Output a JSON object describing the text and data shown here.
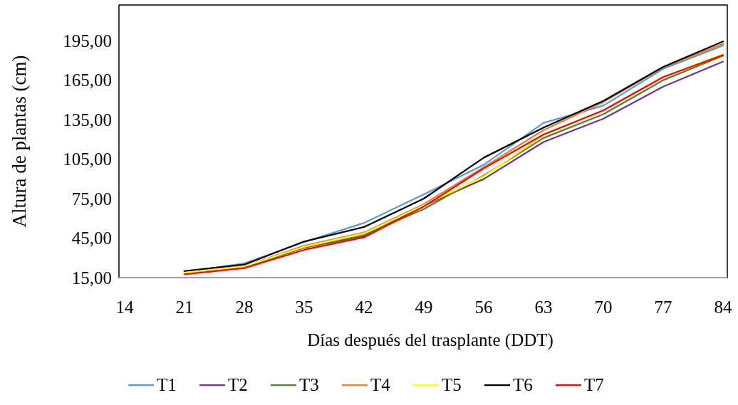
{
  "chart_data": {
    "type": "line",
    "xlabel": "Días después del trasplante (DDT)",
    "ylabel": "Altura de plantas (cm)",
    "categories": [
      "14",
      "21",
      "28",
      "35",
      "42",
      "49",
      "56",
      "63",
      "70",
      "77",
      "84"
    ],
    "ylim": [
      15,
      222
    ],
    "yticks": [
      {
        "value": 15,
        "label": "15,00"
      },
      {
        "value": 45,
        "label": "45,00"
      },
      {
        "value": 75,
        "label": "75,00"
      },
      {
        "value": 105,
        "label": "105,00"
      },
      {
        "value": 135,
        "label": "135,00"
      },
      {
        "value": 165,
        "label": "165,00"
      },
      {
        "value": 195,
        "label": "195,00"
      }
    ],
    "grid": false,
    "legend": "bottom",
    "marker": "none",
    "line_style": "solid",
    "series": [
      {
        "name": "T1",
        "color": "#5b9bd5",
        "values": [
          null,
          19.3,
          25.8,
          42,
          56.5,
          78.2,
          100.6,
          132.5,
          145.6,
          173.5,
          191.2
        ]
      },
      {
        "name": "T2",
        "color": "#7030a0",
        "values": [
          null,
          19.3,
          23,
          37.8,
          46.5,
          69.6,
          89.8,
          118,
          135.7,
          160,
          179
        ]
      },
      {
        "name": "T3",
        "color": "#548235",
        "values": [
          null,
          19.3,
          23,
          38,
          47.4,
          67,
          92.5,
          121,
          139,
          164.9,
          183.5
        ]
      },
      {
        "name": "T4",
        "color": "#ed7d31",
        "values": [
          null,
          19,
          23.5,
          39.3,
          49.2,
          70.8,
          98.8,
          127,
          148.3,
          174.5,
          192.5
        ]
      },
      {
        "name": "T5",
        "color": "#ffff00",
        "values": [
          null,
          19,
          23.5,
          38.4,
          48.5,
          70,
          91.7,
          123.4,
          142,
          167.3,
          184.7
        ]
      },
      {
        "name": "T6",
        "color": "#000000",
        "values": [
          null,
          20,
          24.9,
          42.4,
          53.4,
          75,
          106,
          128.9,
          149.2,
          175,
          194.3
        ]
      },
      {
        "name": "T7",
        "color": "#ff0000",
        "values": [
          null,
          17.5,
          22.2,
          36.1,
          45.6,
          69,
          97.9,
          123.6,
          142,
          167.3,
          184
        ]
      }
    ]
  }
}
